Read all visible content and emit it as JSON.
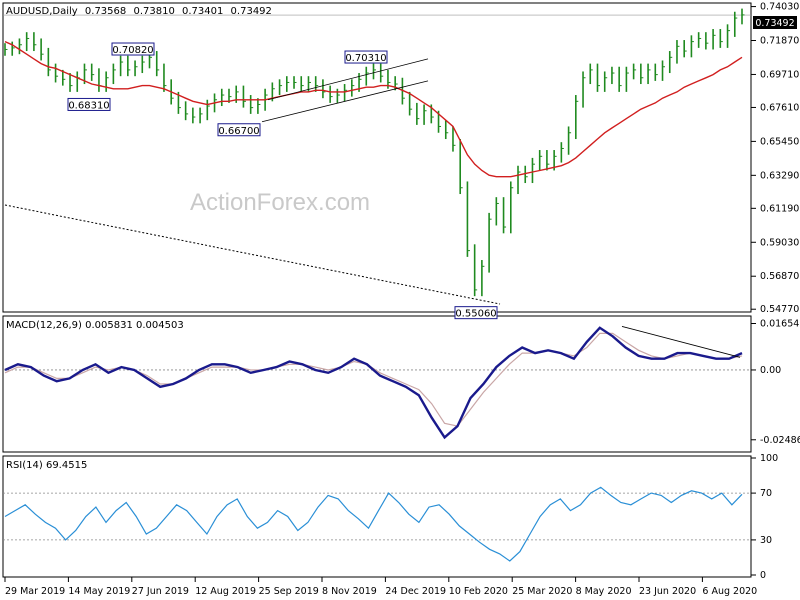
{
  "chart_data": [
    {
      "type": "line",
      "panel": "price",
      "title": "AUDUSD,Daily",
      "ohlc": {
        "open": "0.73568",
        "high": "0.73810",
        "low": "0.73401",
        "close": "0.73492"
      },
      "last_price": "0.73492",
      "watermark": "ActionForex.com",
      "ylim": [
        0.5472,
        0.7413
      ],
      "y_ticks": [
        "0.74030",
        "0.71870",
        "0.69710",
        "0.67610",
        "0.65450",
        "0.63290",
        "0.61190",
        "0.59030",
        "0.56870",
        "0.54770"
      ],
      "x_ticks": [
        "29 Mar 2019",
        "14 May 2019",
        "27 Jun 2019",
        "12 Aug 2019",
        "25 Sep 2019",
        "8 Nov 2019",
        "24 Dec 2019",
        "10 Feb 2020",
        "25 Mar 2020",
        "8 May 2020",
        "23 Jun 2020",
        "6 Aug 2020"
      ],
      "annotations": [
        {
          "text": "0.68310",
          "price": 0.6831
        },
        {
          "text": "0.70820",
          "price": 0.7082
        },
        {
          "text": "0.66700",
          "price": 0.667
        },
        {
          "text": "0.70310",
          "price": 0.7031
        },
        {
          "text": "0.55060",
          "price": 0.5506
        }
      ],
      "series": [
        {
          "name": "",
          "style": "bars",
          "color": "#1f8a1f",
          "values": [
            0.713,
            0.714,
            0.716,
            0.72,
            0.716,
            0.71,
            0.7,
            0.696,
            0.694,
            0.69,
            0.695,
            0.7,
            0.697,
            0.69,
            0.695,
            0.7,
            0.705,
            0.7,
            0.702,
            0.705,
            0.708,
            0.7,
            0.69,
            0.682,
            0.676,
            0.672,
            0.67,
            0.672,
            0.677,
            0.681,
            0.684,
            0.683,
            0.686,
            0.68,
            0.676,
            0.678,
            0.684,
            0.688,
            0.69,
            0.692,
            0.692,
            0.69,
            0.692,
            0.69,
            0.686,
            0.683,
            0.684,
            0.687,
            0.69,
            0.694,
            0.698,
            0.7,
            0.696,
            0.692,
            0.691,
            0.682,
            0.675,
            0.669,
            0.674,
            0.67,
            0.664,
            0.66,
            0.652,
            0.625,
            0.585,
            0.56,
            0.575,
            0.605,
            0.615,
            0.6,
            0.625,
            0.635,
            0.632,
            0.64,
            0.645,
            0.64,
            0.645,
            0.65,
            0.66,
            0.68,
            0.695,
            0.7,
            0.69,
            0.695,
            0.698,
            0.69,
            0.698,
            0.7,
            0.695,
            0.7,
            0.697,
            0.702,
            0.708,
            0.715,
            0.712,
            0.718,
            0.72,
            0.717,
            0.722,
            0.718,
            0.725,
            0.733,
            0.735
          ]
        },
        {
          "name": "",
          "style": "line",
          "color": "#d11f1f",
          "values": [
            0.718,
            0.716,
            0.713,
            0.71,
            0.707,
            0.704,
            0.702,
            0.701,
            0.699,
            0.697,
            0.695,
            0.693,
            0.691,
            0.69,
            0.689,
            0.688,
            0.688,
            0.688,
            0.689,
            0.69,
            0.69,
            0.689,
            0.688,
            0.686,
            0.684,
            0.682,
            0.68,
            0.679,
            0.678,
            0.679,
            0.68,
            0.68,
            0.681,
            0.681,
            0.681,
            0.681,
            0.681,
            0.682,
            0.683,
            0.684,
            0.685,
            0.686,
            0.686,
            0.687,
            0.687,
            0.686,
            0.686,
            0.686,
            0.687,
            0.688,
            0.689,
            0.689,
            0.69,
            0.69,
            0.689,
            0.687,
            0.685,
            0.682,
            0.679,
            0.676,
            0.672,
            0.668,
            0.664,
            0.655,
            0.646,
            0.64,
            0.636,
            0.633,
            0.632,
            0.632,
            0.632,
            0.633,
            0.634,
            0.635,
            0.636,
            0.637,
            0.638,
            0.639,
            0.641,
            0.644,
            0.648,
            0.652,
            0.656,
            0.66,
            0.663,
            0.666,
            0.669,
            0.672,
            0.675,
            0.677,
            0.679,
            0.682,
            0.684,
            0.686,
            0.689,
            0.691,
            0.693,
            0.695,
            0.697,
            0.7,
            0.702,
            0.705,
            0.708
          ]
        },
        {
          "name": "",
          "style": "dashed",
          "color": "#000000",
          "values": [
            0.614,
            0.611,
            0.608,
            0.605,
            0.602,
            0.599,
            0.596,
            0.593,
            0.59,
            0.587,
            0.584,
            0.581,
            0.578,
            0.575,
            0.572,
            0.569,
            0.566,
            0.563,
            0.56,
            0.557,
            0.554,
            0.551
          ]
        }
      ],
      "channel": {
        "upper": [
          0.681,
          0.707
        ],
        "lower": [
          0.667,
          0.693
        ]
      }
    },
    {
      "type": "line",
      "panel": "macd",
      "title": "MACD(12,26,9) 0.005831 0.004503",
      "ylim": [
        -0.0285,
        0.0185
      ],
      "y_ticks": [
        "0.01654",
        "0.00",
        "-0.02486"
      ],
      "series": [
        {
          "name": "",
          "color": "#1a1a8c",
          "values": [
            0.0,
            0.002,
            0.001,
            -0.002,
            -0.004,
            -0.003,
            0.0,
            0.002,
            -0.001,
            0.001,
            0.0,
            -0.003,
            -0.006,
            -0.005,
            -0.003,
            0.0,
            0.002,
            0.002,
            0.001,
            -0.001,
            0.0,
            0.001,
            0.003,
            0.002,
            0.0,
            -0.001,
            0.001,
            0.004,
            0.002,
            -0.002,
            -0.004,
            -0.006,
            -0.009,
            -0.017,
            -0.024,
            -0.02,
            -0.01,
            -0.005,
            0.001,
            0.005,
            0.008,
            0.006,
            0.007,
            0.006,
            0.004,
            0.01,
            0.015,
            0.012,
            0.008,
            0.005,
            0.004,
            0.004,
            0.006,
            0.006,
            0.005,
            0.004,
            0.004,
            0.006
          ]
        },
        {
          "name": "",
          "color": "#c9a6a6",
          "values": [
            -0.001,
            0.001,
            0.001,
            -0.001,
            -0.003,
            -0.003,
            -0.001,
            0.001,
            0.0,
            0.001,
            0.0,
            -0.002,
            -0.005,
            -0.005,
            -0.003,
            -0.001,
            0.001,
            0.001,
            0.001,
            0.0,
            0.0,
            0.001,
            0.002,
            0.002,
            0.001,
            0.0,
            0.001,
            0.003,
            0.002,
            -0.001,
            -0.003,
            -0.005,
            -0.007,
            -0.012,
            -0.019,
            -0.02,
            -0.014,
            -0.008,
            -0.003,
            0.002,
            0.006,
            0.006,
            0.007,
            0.006,
            0.005,
            0.008,
            0.013,
            0.013,
            0.01,
            0.007,
            0.005,
            0.004,
            0.005,
            0.006,
            0.005,
            0.004,
            0.004,
            0.005
          ]
        }
      ]
    },
    {
      "type": "line",
      "panel": "rsi",
      "title": "RSI(14) 69.4515",
      "ylim": [
        0,
        100
      ],
      "y_ticks": [
        "100",
        "70",
        "30",
        "0"
      ],
      "series": [
        {
          "name": "",
          "color": "#2a8fd6",
          "values": [
            50,
            55,
            60,
            52,
            45,
            40,
            30,
            38,
            50,
            58,
            45,
            55,
            62,
            50,
            35,
            40,
            50,
            60,
            55,
            45,
            35,
            50,
            60,
            65,
            50,
            40,
            45,
            55,
            50,
            38,
            45,
            58,
            68,
            65,
            55,
            48,
            40,
            55,
            70,
            62,
            52,
            45,
            58,
            60,
            52,
            42,
            35,
            28,
            22,
            18,
            12,
            20,
            35,
            50,
            60,
            65,
            55,
            60,
            70,
            75,
            68,
            62,
            60,
            65,
            70,
            68,
            62,
            68,
            72,
            70,
            65,
            70,
            60,
            69
          ]
        }
      ]
    }
  ]
}
